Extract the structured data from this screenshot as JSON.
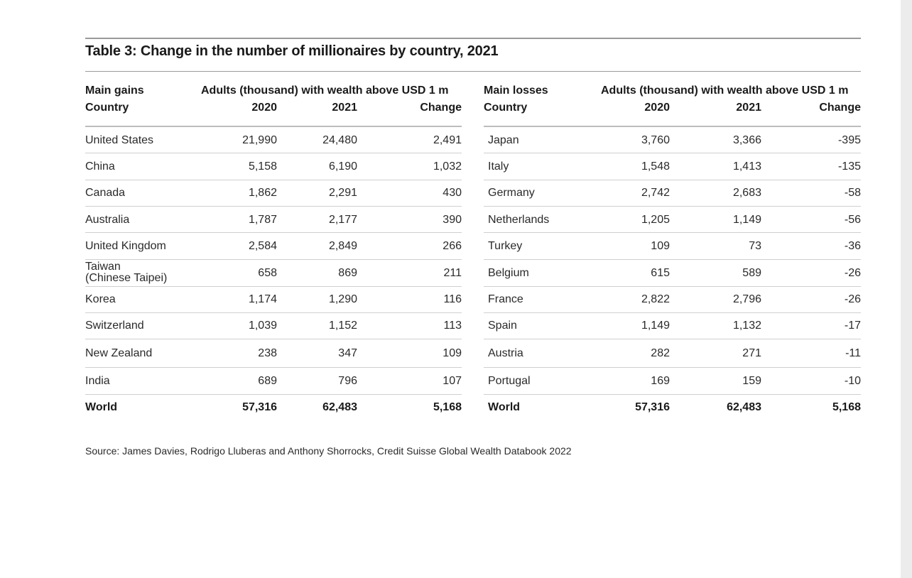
{
  "title": "Table 3: Change in the number of millionaires by country, 2021",
  "gains": {
    "group_label": "Main gains",
    "country_label": "Country",
    "span_label": "Adults (thousand) with wealth above USD 1 m",
    "col_2020": "2020",
    "col_2021": "2021",
    "col_change": "Change",
    "rows": [
      {
        "country": "United States",
        "v2020": "21,990",
        "v2021": "24,480",
        "change": "2,491"
      },
      {
        "country": "China",
        "v2020": "5,158",
        "v2021": "6,190",
        "change": "1,032"
      },
      {
        "country": "Canada",
        "v2020": "1,862",
        "v2021": "2,291",
        "change": "430"
      },
      {
        "country": "Australia",
        "v2020": "1,787",
        "v2021": "2,177",
        "change": "390"
      },
      {
        "country": "United Kingdom",
        "v2020": "2,584",
        "v2021": "2,849",
        "change": "266"
      },
      {
        "country": "Taiwan",
        "country_line2": "(Chinese Taipei)",
        "v2020": "658",
        "v2021": "869",
        "change": "211"
      },
      {
        "country": "Korea",
        "v2020": "1,174",
        "v2021": "1,290",
        "change": "116"
      },
      {
        "country": "Switzerland",
        "v2020": "1,039",
        "v2021": "1,152",
        "change": "113"
      },
      {
        "country": "New Zealand",
        "v2020": "238",
        "v2021": "347",
        "change": "109"
      },
      {
        "country": "India",
        "v2020": "689",
        "v2021": "796",
        "change": "107"
      }
    ],
    "total": {
      "country": "World",
      "v2020": "57,316",
      "v2021": "62,483",
      "change": "5,168"
    }
  },
  "losses": {
    "group_label": "Main losses",
    "country_label": "Country",
    "span_label": "Adults (thousand) with wealth above USD 1 m",
    "col_2020": "2020",
    "col_2021": "2021",
    "col_change": "Change",
    "rows": [
      {
        "country": "Japan",
        "v2020": "3,760",
        "v2021": "3,366",
        "change": "-395"
      },
      {
        "country": "Italy",
        "v2020": "1,548",
        "v2021": "1,413",
        "change": "-135"
      },
      {
        "country": "Germany",
        "v2020": "2,742",
        "v2021": "2,683",
        "change": "-58"
      },
      {
        "country": "Netherlands",
        "v2020": "1,205",
        "v2021": "1,149",
        "change": "-56"
      },
      {
        "country": "Turkey",
        "v2020": "109",
        "v2021": "73",
        "change": "-36"
      },
      {
        "country": "Belgium",
        "v2020": "615",
        "v2021": "589",
        "change": "-26"
      },
      {
        "country": "France",
        "v2020": "2,822",
        "v2021": "2,796",
        "change": "-26"
      },
      {
        "country": "Spain",
        "v2020": "1,149",
        "v2021": "1,132",
        "change": "-17"
      },
      {
        "country": "Austria",
        "v2020": "282",
        "v2021": "271",
        "change": "-11"
      },
      {
        "country": "Portugal",
        "v2020": "169",
        "v2021": "159",
        "change": "-10"
      }
    ],
    "total": {
      "country": "World",
      "v2020": "57,316",
      "v2021": "62,483",
      "change": "5,168"
    }
  },
  "source": "Source: James Davies, Rodrigo Lluberas and Anthony Shorrocks, Credit Suisse Global Wealth Databook 2022"
}
